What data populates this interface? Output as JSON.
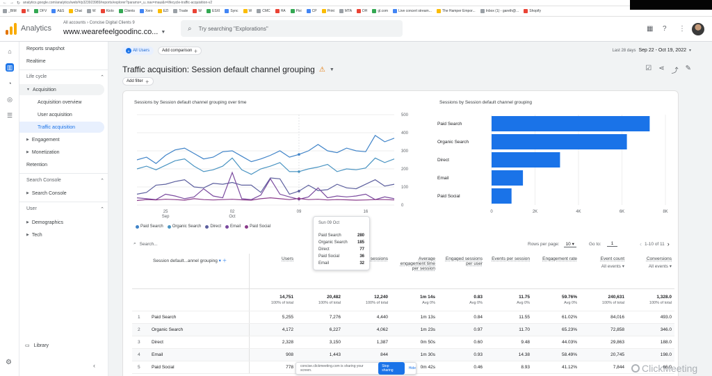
{
  "browser": {
    "url": "analytics.google.com/analytics/web/#/p323923989/reports/explorer?params=_u..nav=maui&r=lifecycle-traffic-acquisition-v2",
    "bookmarks": [
      "_BIM",
      "R",
      "DFV",
      "A&S",
      "Chat",
      "W",
      "Kiolo",
      "Clients",
      "Xero",
      "EZI",
      "Trade",
      "W",
      "ESXI",
      "Sync",
      "W",
      "CMC",
      "HA",
      "Pixi",
      "CP",
      "Print",
      "MTA",
      "DH",
      "gl.com",
      "Live concert stream...",
      "The Hamper Empor...",
      "Inbox (1) - gareth@...",
      "Shopify"
    ]
  },
  "header": {
    "product": "Analytics",
    "account_crumb": "All accounts › Concise Digital Clients 9",
    "property": "www.wearefeelgoodinc.co...",
    "search_placeholder": "Try searching \"Explorations\""
  },
  "nav": {
    "reports_snapshot": "Reports snapshot",
    "realtime": "Realtime",
    "life_cycle": "Life cycle",
    "acquisition": "Acquisition",
    "acquisition_overview": "Acquisition overview",
    "user_acquisition": "User acquisition",
    "traffic_acquisition": "Traffic acquisition",
    "engagement": "Engagement",
    "monetization": "Monetization",
    "retention": "Retention",
    "search_console_section": "Search Console",
    "search_console": "Search Console",
    "user_section": "User",
    "demographics": "Demographics",
    "tech": "Tech",
    "library": "Library"
  },
  "toolbar": {
    "all_users": "All Users",
    "all_users_badge": "A",
    "add_comparison": "Add comparison",
    "date_prefix": "Last 28 days",
    "date_range": "Sep 22 - Oct 19, 2022",
    "title": "Traffic acquisition: Session default channel grouping",
    "add_filter": "Add filter"
  },
  "line_chart": {
    "title": "Sessions by Session default channel grouping over time",
    "y_ticks": [
      "500",
      "400",
      "300",
      "200",
      "100",
      "0"
    ],
    "x_ticks": [
      {
        "day": "25",
        "month": "Sep"
      },
      {
        "day": "02",
        "month": "Oct"
      },
      {
        "day": "09",
        "month": ""
      },
      {
        "day": "16",
        "month": ""
      }
    ],
    "legend": [
      "Paid Search",
      "Organic Search",
      "Direct",
      "Email",
      "Paid Social"
    ]
  },
  "tooltip": {
    "date": "Sun 09 Oct",
    "rows": [
      {
        "label": "Paid Search",
        "value": "280"
      },
      {
        "label": "Organic Search",
        "value": "185"
      },
      {
        "label": "Direct",
        "value": "77"
      },
      {
        "label": "Paid Social",
        "value": "36"
      },
      {
        "label": "Email",
        "value": "32"
      }
    ]
  },
  "bar_chart": {
    "title": "Sessions by Session default channel grouping",
    "x_ticks": [
      "0",
      "2K",
      "4K",
      "6K",
      "8K"
    ]
  },
  "table": {
    "search_placeholder": "Search...",
    "rows_per_page_label": "Rows per page:",
    "rows_per_page": "10",
    "goto_label": "Go to:",
    "goto_value": "1",
    "pagination": "1-10 of 11",
    "dimension_header": "Session default...annel grouping",
    "columns": [
      {
        "label": "Users",
        "sub": "",
        "total": "14,751",
        "pct": "100% of total"
      },
      {
        "label": "Sessions",
        "sub": "",
        "total": "20,482",
        "pct": "100% of total"
      },
      {
        "label": "Engaged sessions",
        "sub": "",
        "total": "12,240",
        "pct": "100% of total"
      },
      {
        "label": "Average engagement time per session",
        "sub": "",
        "total": "1m 14s",
        "pct": "Avg 0%"
      },
      {
        "label": "Engaged sessions per user",
        "sub": "",
        "total": "0.83",
        "pct": "Avg 0%"
      },
      {
        "label": "Events per session",
        "sub": "",
        "total": "11.75",
        "pct": "Avg 0%"
      },
      {
        "label": "Engagement rate",
        "sub": "",
        "total": "59.76%",
        "pct": "Avg 0%"
      },
      {
        "label": "Event count",
        "sub": "All events",
        "total": "240,631",
        "pct": "100% of total"
      },
      {
        "label": "Conversions",
        "sub": "All events",
        "total": "1,328.0",
        "pct": "100% of total"
      }
    ],
    "rows": [
      {
        "idx": "1",
        "name": "Paid Search",
        "values": [
          "5,255",
          "7,276",
          "4,440",
          "1m 13s",
          "0.84",
          "11.55",
          "61.02%",
          "84,016",
          "493.0"
        ]
      },
      {
        "idx": "2",
        "name": "Organic Search",
        "values": [
          "4,172",
          "6,227",
          "4,062",
          "1m 23s",
          "0.97",
          "11.70",
          "65.23%",
          "72,858",
          "346.0"
        ]
      },
      {
        "idx": "3",
        "name": "Direct",
        "values": [
          "2,328",
          "3,150",
          "1,387",
          "0m 50s",
          "0.60",
          "9.48",
          "44.03%",
          "29,863",
          "188.0"
        ]
      },
      {
        "idx": "4",
        "name": "Email",
        "values": [
          "908",
          "1,443",
          "844",
          "1m 30s",
          "0.93",
          "14.38",
          "58.49%",
          "20,745",
          "198.0"
        ]
      },
      {
        "idx": "5",
        "name": "Paid Social",
        "values": [
          "778",
          "",
          "",
          "0m 42s",
          "0.46",
          "8.93",
          "41.12%",
          "7,844",
          "66.0"
        ]
      }
    ]
  },
  "overlay": {
    "share_text": "concise.clickmeeting.com is sharing your screen.",
    "stop_label": "Stop sharing",
    "hide_label": "Hide",
    "watermark": "ClickMeeting"
  },
  "chart_data": [
    {
      "type": "line",
      "title": "Sessions by Session default channel grouping over time",
      "x": [
        "Sep 22",
        "Sep 23",
        "Sep 24",
        "Sep 25",
        "Sep 26",
        "Sep 27",
        "Sep 28",
        "Sep 29",
        "Sep 30",
        "Oct 01",
        "Oct 02",
        "Oct 03",
        "Oct 04",
        "Oct 05",
        "Oct 06",
        "Oct 07",
        "Oct 08",
        "Oct 09",
        "Oct 10",
        "Oct 11",
        "Oct 12",
        "Oct 13",
        "Oct 14",
        "Oct 15",
        "Oct 16",
        "Oct 17",
        "Oct 18",
        "Oct 19"
      ],
      "ylim": [
        0,
        500
      ],
      "series": [
        {
          "name": "Paid Search",
          "values": [
            250,
            265,
            230,
            275,
            305,
            315,
            285,
            255,
            265,
            295,
            300,
            270,
            240,
            255,
            275,
            300,
            265,
            280,
            300,
            335,
            300,
            290,
            315,
            300,
            295,
            385,
            350,
            370
          ]
        },
        {
          "name": "Organic Search",
          "values": [
            200,
            215,
            195,
            220,
            245,
            255,
            215,
            185,
            195,
            215,
            260,
            195,
            170,
            200,
            215,
            235,
            185,
            185,
            200,
            210,
            225,
            185,
            200,
            195,
            205,
            260,
            235,
            255
          ]
        },
        {
          "name": "Direct",
          "values": [
            60,
            70,
            110,
            115,
            130,
            140,
            100,
            95,
            120,
            115,
            125,
            110,
            110,
            70,
            150,
            145,
            60,
            77,
            110,
            80,
            85,
            115,
            95,
            90,
            115,
            140,
            105,
            115
          ]
        },
        {
          "name": "Email",
          "values": [
            40,
            35,
            30,
            60,
            50,
            35,
            45,
            90,
            50,
            40,
            180,
            35,
            30,
            55,
            145,
            60,
            45,
            32,
            45,
            95,
            40,
            50,
            45,
            50,
            60,
            30,
            45,
            35
          ]
        },
        {
          "name": "Paid Social",
          "values": [
            25,
            30,
            28,
            32,
            30,
            27,
            35,
            30,
            28,
            30,
            32,
            29,
            27,
            35,
            40,
            35,
            30,
            36,
            30,
            32,
            28,
            30,
            29,
            27,
            28,
            30,
            30,
            28
          ]
        }
      ]
    },
    {
      "type": "bar",
      "title": "Sessions by Session default channel grouping",
      "categories": [
        "Paid Search",
        "Organic Search",
        "Direct",
        "Email",
        "Paid Social"
      ],
      "values": [
        7276,
        6227,
        3150,
        1443,
        918
      ],
      "xlim": [
        0,
        8000
      ]
    }
  ],
  "colors": {
    "paid_search": "#3f83c8",
    "organic_search": "#4a94c2",
    "direct": "#5c5f9e",
    "email": "#7a4a9e",
    "paid_social": "#8a3b8a",
    "bar": "#1a73e8"
  }
}
